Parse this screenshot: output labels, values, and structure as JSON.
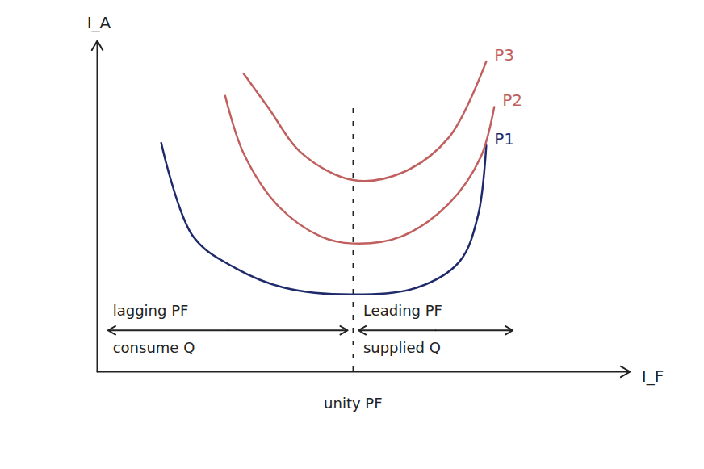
{
  "chart_data": {
    "type": "line",
    "x_label": "I_F",
    "y_label": "I_A",
    "xlim": [
      0,
      10
    ],
    "ylim": [
      0,
      12
    ],
    "xticks": [],
    "yticks": [],
    "tick_labels": false,
    "grid": false,
    "series": [
      {
        "name": "P1",
        "color": "#1f2a6b",
        "x": [
          1.2,
          1.8,
          2.6,
          3.5,
          4.8,
          6.0,
          6.8,
          7.15,
          7.3
        ],
        "values": [
          8.3,
          4.9,
          3.75,
          3.05,
          2.8,
          3.05,
          4.0,
          5.7,
          8.2
        ]
      },
      {
        "name": "P2",
        "color": "#c0605e",
        "x": [
          2.4,
          2.75,
          3.4,
          4.2,
          4.8,
          5.7,
          6.6,
          7.2,
          7.45
        ],
        "values": [
          10.0,
          7.9,
          6.0,
          4.9,
          4.65,
          4.9,
          6.1,
          7.8,
          9.6
        ]
      },
      {
        "name": "P3",
        "color": "#c0605e",
        "x": [
          2.75,
          3.2,
          3.85,
          4.8,
          5.7,
          6.6,
          7.3
        ],
        "values": [
          10.8,
          9.6,
          7.9,
          6.95,
          7.2,
          8.5,
          11.25
        ]
      }
    ],
    "unity": {
      "x": 4.8,
      "label": "unity PF"
    },
    "regions": [
      {
        "label": "lagging PF",
        "sublabel": "consume Q",
        "from": 0.2,
        "to": 4.7,
        "y": 1.5
      },
      {
        "label": "Leading PF",
        "sublabel": "supplied Q",
        "from": 4.9,
        "to": 7.8,
        "y": 1.5
      }
    ]
  }
}
